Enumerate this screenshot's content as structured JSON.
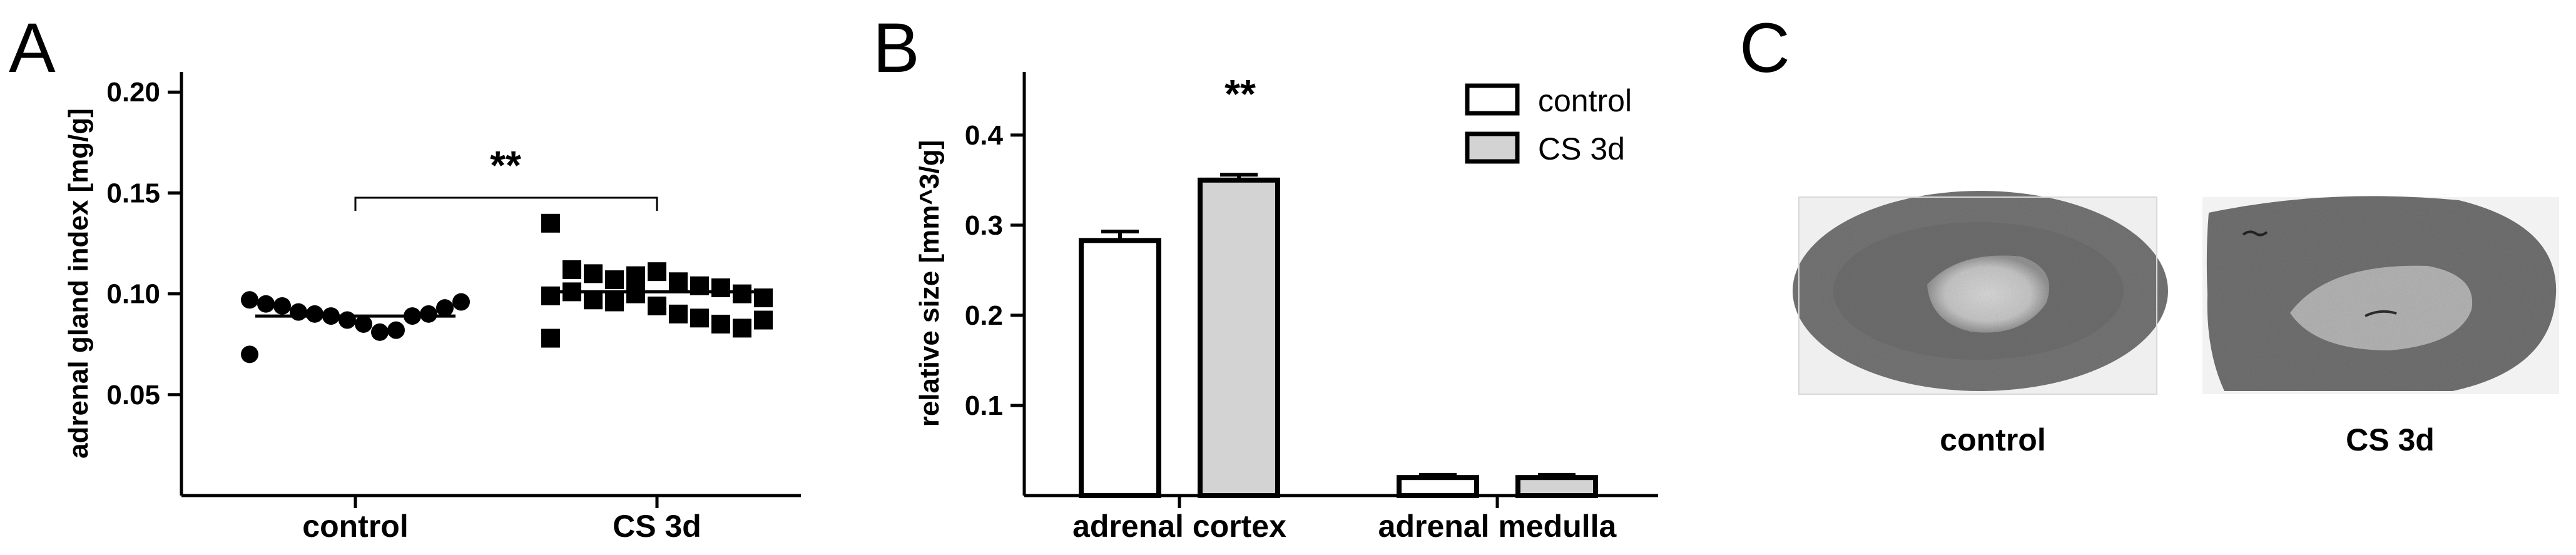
{
  "panels": {
    "a": "A",
    "b": "B",
    "c": "C"
  },
  "colors": {
    "control_fill": "#ffffff",
    "cs3d_fill": "#d3d3d3",
    "ink": "#000000"
  },
  "chart_data": [
    {
      "type": "scatter",
      "ylabel": "adrenal gland index [mg/g]",
      "ylim": [
        0.0,
        0.21
      ],
      "yticks": [
        "0.05",
        "0.10",
        "0.15",
        "0.20"
      ],
      "categories": [
        "control",
        "CS 3d"
      ],
      "significance": "**",
      "series": [
        {
          "category": "control",
          "marker": "circle",
          "mean": 0.089,
          "values": [
            0.097,
            0.095,
            0.094,
            0.091,
            0.09,
            0.089,
            0.087,
            0.085,
            0.081,
            0.082,
            0.089,
            0.09,
            0.093,
            0.096,
            0.07
          ]
        },
        {
          "category": "CS 3d",
          "marker": "square",
          "mean": 0.101,
          "values": [
            0.135,
            0.112,
            0.11,
            0.107,
            0.109,
            0.111,
            0.106,
            0.104,
            0.103,
            0.1,
            0.098,
            0.099,
            0.101,
            0.097,
            0.096,
            0.1,
            0.094,
            0.09,
            0.088,
            0.085,
            0.083,
            0.087,
            0.078
          ]
        }
      ]
    },
    {
      "type": "bar",
      "ylabel": "relative size [mm^3/g]",
      "ylim": [
        0.0,
        0.47
      ],
      "yticks": [
        "0.1",
        "0.2",
        "0.3",
        "0.4"
      ],
      "categories": [
        "adrenal cortex",
        "adrenal medulla"
      ],
      "significance": "**",
      "legend": {
        "position": "top-right"
      },
      "series": [
        {
          "name": "control",
          "values": [
            0.283,
            0.02
          ],
          "errors": [
            0.01,
            0.003
          ]
        },
        {
          "name": "CS 3d",
          "values": [
            0.35,
            0.02
          ],
          "errors": [
            0.006,
            0.003
          ]
        }
      ]
    }
  ],
  "panel_c": {
    "labels": [
      "control",
      "CS 3d"
    ]
  }
}
